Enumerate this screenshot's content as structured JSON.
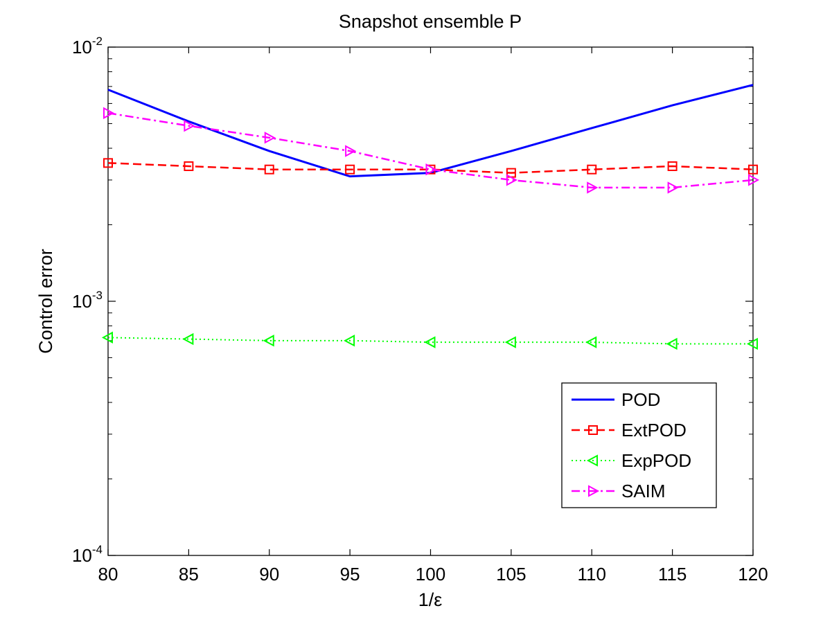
{
  "chart_data": {
    "type": "line",
    "title": "Snapshot ensemble P",
    "xlabel": "1/ε",
    "ylabel": "Control error",
    "xlim": [
      80,
      120
    ],
    "ylim": [
      0.0001,
      0.01
    ],
    "yscale": "log",
    "x": [
      80,
      85,
      90,
      95,
      100,
      105,
      110,
      115,
      120
    ],
    "x_ticks": [
      "80",
      "85",
      "90",
      "95",
      "100",
      "105",
      "110",
      "115",
      "120"
    ],
    "y_ticks": [
      {
        "value": 0.01,
        "base": "10",
        "exp": "-2"
      },
      {
        "value": 0.001,
        "base": "10",
        "exp": "-3"
      },
      {
        "value": 0.0001,
        "base": "10",
        "exp": "-4"
      }
    ],
    "legend_position": "bottom-right",
    "series": [
      {
        "name": "POD",
        "color": "#0000FF",
        "style": "solid",
        "marker": "none",
        "values": [
          0.0068,
          0.0051,
          0.0039,
          0.0031,
          0.0032,
          0.0039,
          0.0048,
          0.0059,
          0.0071
        ]
      },
      {
        "name": "ExtPOD",
        "color": "#FF0000",
        "style": "dashed",
        "marker": "square",
        "values": [
          0.0035,
          0.0034,
          0.0033,
          0.0033,
          0.0033,
          0.0032,
          0.0033,
          0.0034,
          0.0033
        ]
      },
      {
        "name": "ExpPOD",
        "color": "#00FF00",
        "style": "dotted",
        "marker": "triangle-left",
        "values": [
          0.00072,
          0.00071,
          0.0007,
          0.0007,
          0.00069,
          0.00069,
          0.00069,
          0.00068,
          0.00068
        ]
      },
      {
        "name": "SAIM",
        "color": "#FF00FF",
        "style": "dashdot",
        "marker": "triangle-right",
        "values": [
          0.0055,
          0.0049,
          0.0044,
          0.0039,
          0.0033,
          0.003,
          0.0028,
          0.0028,
          0.003
        ]
      }
    ]
  }
}
